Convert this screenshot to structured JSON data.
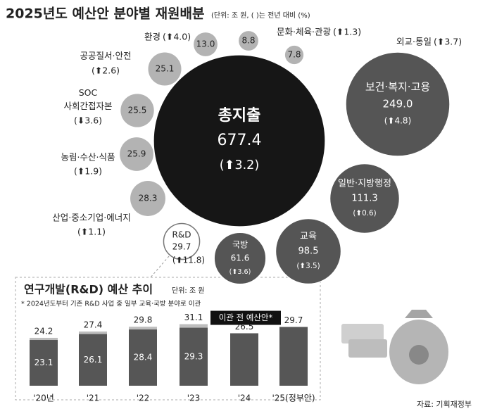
{
  "title": "2025년도 예산안 분야별 재원배분",
  "subtitle": "(단위: 조 원, ( )는 전년 대비 (%)",
  "source": "자료: 기획재정부",
  "chart_data": [
    {
      "type": "bubble",
      "names": [
        "총지출",
        "보건·복지·고용",
        "일반·지방행정",
        "교육",
        "국방",
        "R&D",
        "산업·중소기업·에너지",
        "농림·수산·식품",
        "SOC 사회간접자본",
        "공공질서·안전",
        "환경",
        "문화·체육·관광",
        "외교·통일"
      ],
      "values": [
        677.4,
        249.0,
        111.3,
        98.5,
        61.6,
        29.7,
        28.3,
        25.9,
        25.5,
        25.1,
        13.0,
        8.8,
        7.8
      ],
      "value_labels": [
        "677.4",
        "249.0",
        "111.3",
        "98.5",
        "61.6",
        "29.7",
        "28.3",
        "25.9",
        "25.5",
        "25.1",
        "13.0",
        "8.8",
        "7.8"
      ],
      "change_labels": [
        "(⬆3.2)",
        "(⬆4.8)",
        "(⬆0.6)",
        "(⬆3.5)",
        "(⬆3.6)",
        "(⬆11.8)",
        "(⬆1.1)",
        "(⬆1.9)",
        "(⬇3.6)",
        "(⬆2.6)",
        "(⬆4.0)",
        "(⬆1.3)",
        "(⬆3.7)"
      ]
    },
    {
      "type": "bar",
      "title": "연구개발(R&D) 예산 추이",
      "unit": "단위: 조 원",
      "note": "* 2024년도부터 기존 R&D 사업 중 일부 교육·국방 분야로 이관",
      "categories": [
        "'20년",
        "'21",
        "'22",
        "'23",
        "'24",
        "'25(정부안)"
      ],
      "series": [
        {
          "name": "이관 전 예산안*",
          "color": "#bdbdbd",
          "values": [
            24.2,
            27.4,
            29.8,
            31.1,
            null,
            null
          ]
        },
        {
          "color": "#565656",
          "values": [
            23.1,
            26.1,
            28.4,
            29.3,
            26.5,
            29.7
          ]
        }
      ],
      "ylim": [
        0,
        32
      ]
    }
  ]
}
